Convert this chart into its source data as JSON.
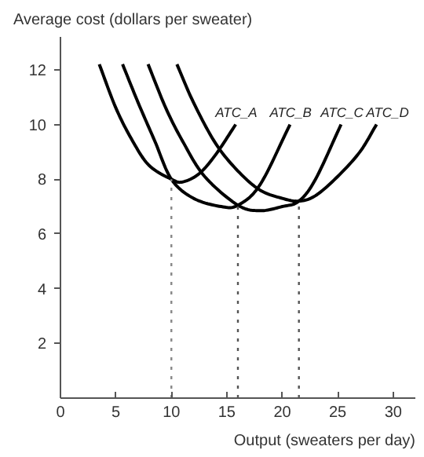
{
  "chart_data": {
    "type": "line",
    "ylabel": "Average cost (dollars per sweater)",
    "xlabel": "Output (sweaters per day)",
    "xlim": [
      0,
      32
    ],
    "ylim": [
      0,
      13.2
    ],
    "xticks": [
      0,
      5,
      10,
      15,
      20,
      25,
      30
    ],
    "yticks": [
      2,
      4,
      6,
      8,
      10,
      12
    ],
    "grid": false,
    "legend": false,
    "marker": "none",
    "line_style": "solid",
    "series": [
      {
        "name": "ATC_A",
        "color": "#000000",
        "x": [
          3.5,
          5,
          6.5,
          8,
          10,
          11,
          12.5,
          14,
          15.8
        ],
        "values": [
          12.2,
          10.6,
          9.4,
          8.5,
          8.0,
          7.9,
          8.2,
          8.9,
          10.0
        ]
      },
      {
        "name": "ATC_B",
        "color": "#000000",
        "x": [
          5.6,
          7,
          8.5,
          10,
          12,
          14.5,
          16,
          18,
          20.7
        ],
        "values": [
          12.2,
          10.8,
          9.4,
          8.0,
          7.3,
          7.0,
          7.05,
          7.8,
          10.0
        ]
      },
      {
        "name": "ATC_C",
        "color": "#000000",
        "x": [
          7.9,
          9.5,
          11,
          13,
          16,
          18,
          20,
          21.5,
          23,
          25.3
        ],
        "values": [
          12.2,
          10.6,
          9.4,
          8.1,
          7.05,
          6.85,
          7.0,
          7.2,
          8.0,
          10.0
        ]
      },
      {
        "name": "ATC_D",
        "color": "#000000",
        "x": [
          10.5,
          12,
          14,
          16,
          18,
          20,
          21.5,
          23,
          25,
          27,
          28.5
        ],
        "values": [
          12.2,
          10.8,
          9.3,
          8.3,
          7.6,
          7.3,
          7.2,
          7.4,
          8.1,
          9.0,
          10.0
        ]
      },
      {
        "color": "#888888",
        "line_style": "dotted",
        "x": [
          10,
          10
        ],
        "values": [
          0,
          8.0
        ]
      },
      {
        "color": "#555555",
        "line_style": "dotted",
        "x": [
          16,
          16
        ],
        "values": [
          0,
          7.05
        ]
      },
      {
        "color": "#555555",
        "line_style": "dotted",
        "x": [
          21.5,
          21.5
        ],
        "values": [
          0,
          7.2
        ]
      }
    ]
  }
}
